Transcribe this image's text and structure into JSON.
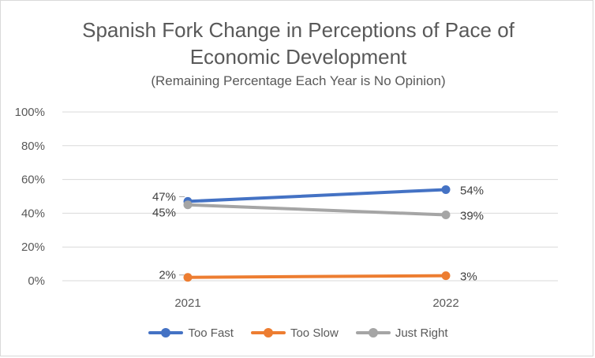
{
  "chart_data": {
    "type": "line",
    "title_lines": [
      "Spanish Fork Change in Perceptions of Pace of",
      "Economic Development"
    ],
    "subtitle": "(Remaining Percentage Each Year is No Opinion)",
    "categories": [
      "2021",
      "2022"
    ],
    "ylim": [
      0,
      100
    ],
    "yticks": [
      0,
      20,
      40,
      60,
      80,
      100
    ],
    "ytick_labels": [
      "0%",
      "20%",
      "40%",
      "60%",
      "80%",
      "100%"
    ],
    "gridlines": true,
    "legend_position": "bottom",
    "series": [
      {
        "name": "Too Fast",
        "color": "#4472c4",
        "values": [
          47,
          54
        ],
        "labels": [
          "47%",
          "54%"
        ]
      },
      {
        "name": "Too Slow",
        "color": "#ed7d31",
        "values": [
          2,
          3
        ],
        "labels": [
          "2%",
          "3%"
        ]
      },
      {
        "name": "Just Right",
        "color": "#a5a5a5",
        "values": [
          45,
          39
        ],
        "labels": [
          "45%",
          "39%"
        ]
      }
    ]
  }
}
